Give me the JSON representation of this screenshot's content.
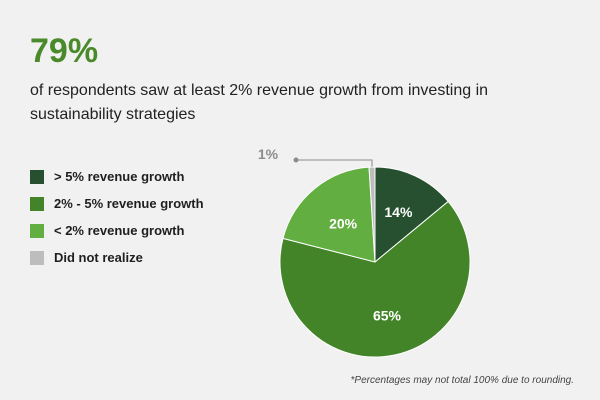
{
  "headline": {
    "value": "79%",
    "subtitle": "of respondents saw at least 2% revenue growth from investing in sustainability strategies"
  },
  "chart_data": {
    "type": "pie",
    "title": "",
    "slices": [
      {
        "label": "> 5% revenue growth",
        "value": 14,
        "display": "14%",
        "color": "#26502f"
      },
      {
        "label": "2% - 5% revenue growth",
        "value": 65,
        "display": "65%",
        "color": "#428427"
      },
      {
        "label": "< 2% revenue growth",
        "value": 20,
        "display": "20%",
        "color": "#63ae41"
      },
      {
        "label": "Did not realize",
        "value": 1,
        "display": "1%",
        "color": "#bdbdbd"
      }
    ],
    "legend_position": "left"
  },
  "footnote": "*Percentages may not total 100% due to rounding."
}
